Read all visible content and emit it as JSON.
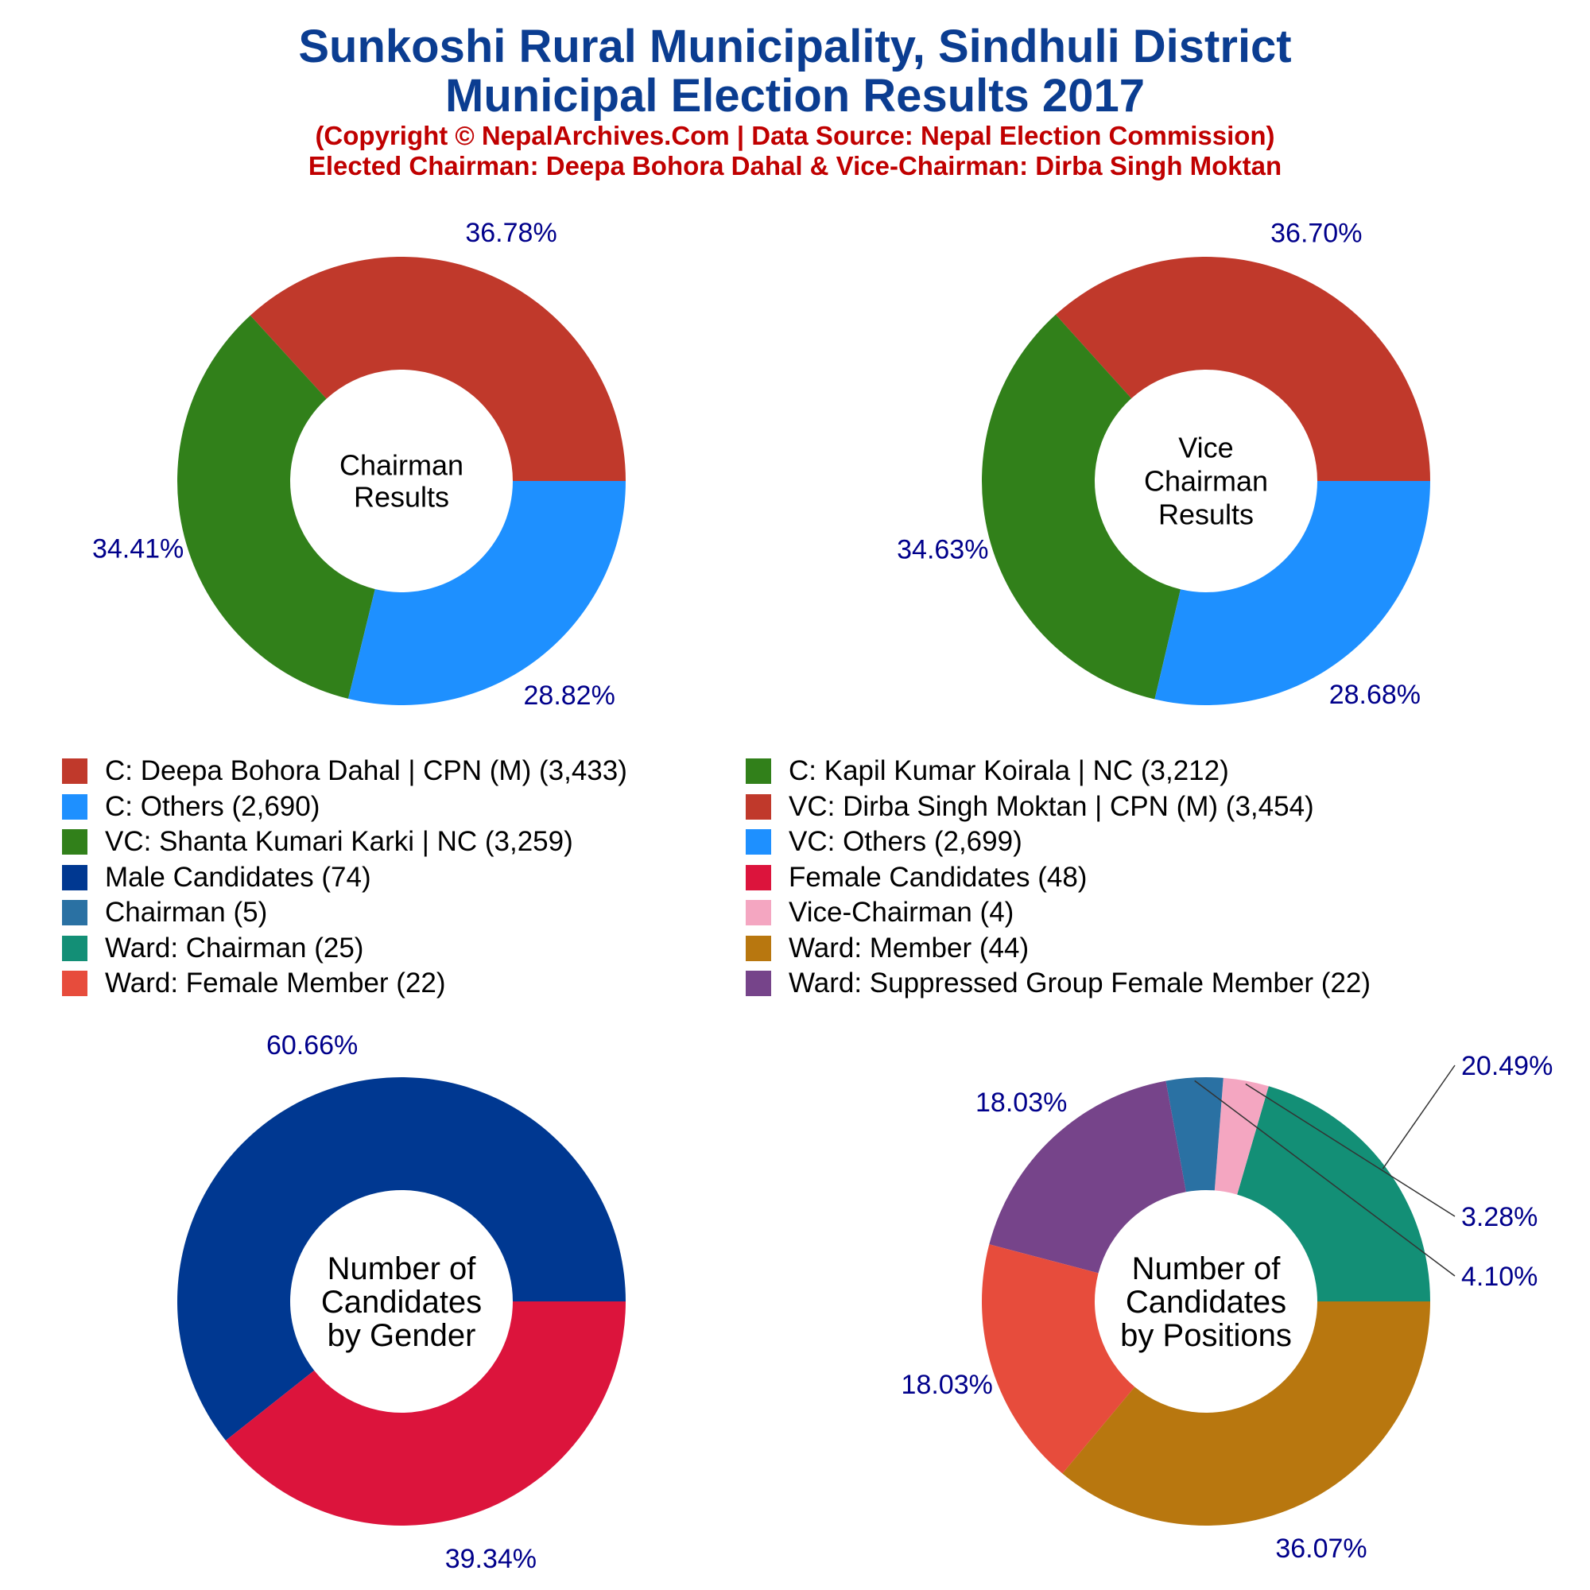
{
  "header": {
    "title_line1": "Sunkoshi Rural Municipality, Sindhuli District",
    "title_line2": "Municipal Election Results 2017",
    "subtitle_line1": "(Copyright © NepalArchives.Com | Data Source: Nepal Election Commission)",
    "subtitle_line2": "Elected Chairman: Deepa Bohora Dahal & Vice-Chairman: Dirba Singh Moktan"
  },
  "chart_data": [
    {
      "type": "pie",
      "center_label": [
        "Chairman",
        "Results"
      ],
      "slices": [
        {
          "label": "C: Deepa Bohora Dahal | CPN (M)",
          "value": 3433,
          "percent": "36.78%",
          "color": "#c0392b"
        },
        {
          "label": "C: Kapil Kumar Koirala | NC",
          "value": 3212,
          "percent": "34.41%",
          "color": "#31801a"
        },
        {
          "label": "C: Others",
          "value": 2690,
          "percent": "28.82%",
          "color": "#1e90ff"
        }
      ]
    },
    {
      "type": "pie",
      "center_label": [
        "Vice",
        "Chairman",
        "Results"
      ],
      "slices": [
        {
          "label": "VC: Dirba Singh Moktan | CPN (M)",
          "value": 3454,
          "percent": "36.70%",
          "color": "#c0392b"
        },
        {
          "label": "VC: Shanta Kumari Karki | NC",
          "value": 3259,
          "percent": "34.63%",
          "color": "#31801a"
        },
        {
          "label": "VC: Others",
          "value": 2699,
          "percent": "28.68%",
          "color": "#1e90ff"
        }
      ]
    },
    {
      "type": "pie",
      "center_label": [
        "Number of",
        "Candidates",
        "by Gender"
      ],
      "slices": [
        {
          "label": "Male Candidates",
          "value": 74,
          "percent": "60.66%",
          "color": "#003891"
        },
        {
          "label": "Female Candidates",
          "value": 48,
          "percent": "39.34%",
          "color": "#dc143c"
        }
      ]
    },
    {
      "type": "pie",
      "center_label": [
        "Number of",
        "Candidates",
        "by Positions"
      ],
      "slices": [
        {
          "label": "Ward: Chairman",
          "value": 25,
          "percent": "20.49%",
          "color": "#138f76"
        },
        {
          "label": "Vice-Chairman",
          "value": 4,
          "percent": "3.28%",
          "color": "#f4a6c1"
        },
        {
          "label": "Chairman",
          "value": 5,
          "percent": "4.10%",
          "color": "#2a71a3"
        },
        {
          "label": "Ward: Suppressed Group Female Member",
          "value": 22,
          "percent": "18.03%",
          "color": "#76448a"
        },
        {
          "label": "Ward: Female Member",
          "value": 22,
          "percent": "18.03%",
          "color": "#e74c3c"
        },
        {
          "label": "Ward: Member",
          "value": 44,
          "percent": "36.07%",
          "color": "#b8770f"
        }
      ]
    }
  ],
  "legend": [
    {
      "text": "C: Deepa Bohora Dahal | CPN (M) (3,433)",
      "color": "#c0392b"
    },
    {
      "text": "C: Kapil Kumar Koirala | NC (3,212)",
      "color": "#31801a"
    },
    {
      "text": "C: Others (2,690)",
      "color": "#1e90ff"
    },
    {
      "text": "VC: Dirba Singh Moktan | CPN (M) (3,454)",
      "color": "#c0392b"
    },
    {
      "text": "VC: Shanta Kumari Karki | NC (3,259)",
      "color": "#31801a"
    },
    {
      "text": "VC: Others (2,699)",
      "color": "#1e90ff"
    },
    {
      "text": "Male Candidates (74)",
      "color": "#003891"
    },
    {
      "text": "Female Candidates (48)",
      "color": "#dc143c"
    },
    {
      "text": "Chairman (5)",
      "color": "#2a71a3"
    },
    {
      "text": "Vice-Chairman (4)",
      "color": "#f4a6c1"
    },
    {
      "text": "Ward: Chairman (25)",
      "color": "#138f76"
    },
    {
      "text": "Ward: Member (44)",
      "color": "#b8770f"
    },
    {
      "text": "Ward: Female Member (22)",
      "color": "#e74c3c"
    },
    {
      "text": "Ward: Suppressed Group Female Member (22)",
      "color": "#76448a"
    }
  ],
  "colors": {
    "percent_label": "#00008b",
    "title": "#0b3d91",
    "subtitle": "#c00000"
  }
}
